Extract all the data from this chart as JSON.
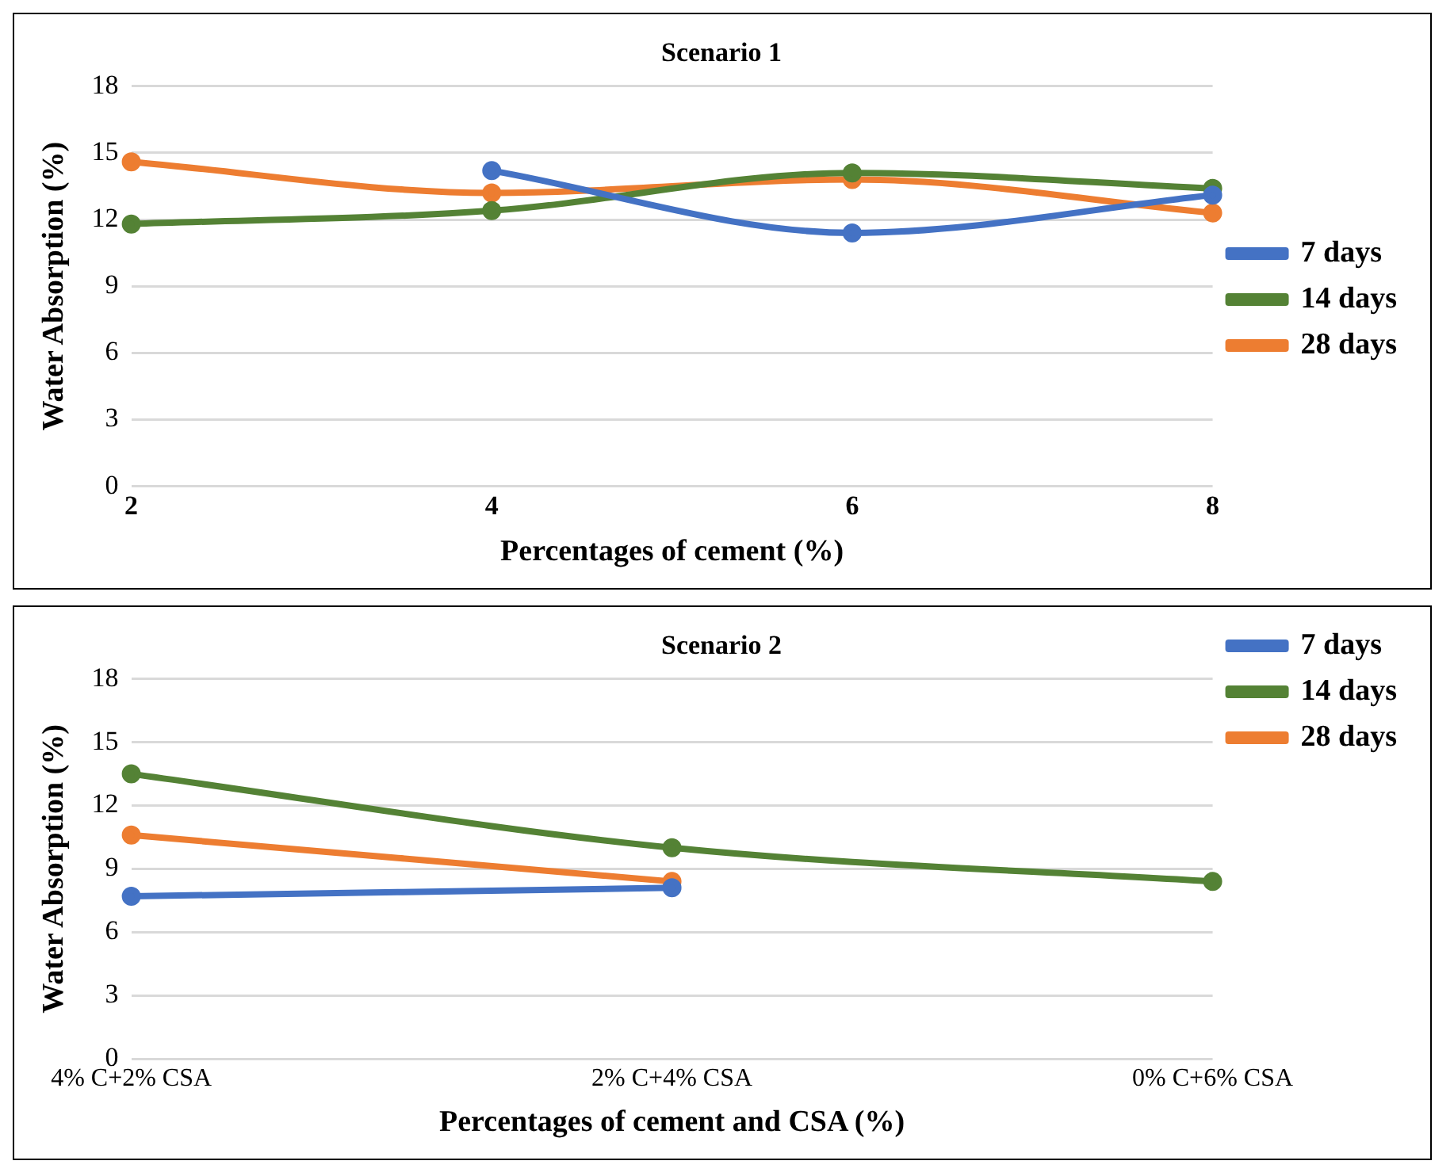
{
  "chart_data": [
    {
      "type": "line",
      "title": "Scenario 1",
      "xlabel": "Percentages of cement (%)",
      "ylabel": "Water Absorption (%)",
      "categories": [
        "2",
        "4",
        "6",
        "8"
      ],
      "series": [
        {
          "name": "7 days",
          "color": "#4472c4",
          "values": [
            null,
            14.2,
            11.4,
            13.1
          ]
        },
        {
          "name": "14 days",
          "color": "#548235",
          "values": [
            11.8,
            12.4,
            14.1,
            13.4
          ]
        },
        {
          "name": "28 days",
          "color": "#ed7d31",
          "values": [
            14.6,
            13.2,
            13.8,
            12.3
          ]
        }
      ],
      "ylim": [
        0,
        18
      ],
      "yticks": [
        0,
        3,
        6,
        9,
        12,
        15,
        18
      ],
      "grid": "y",
      "legend": "right",
      "marker": "circle"
    },
    {
      "type": "line",
      "title": "Scenario 2",
      "xlabel": "Percentages of cement and CSA (%)",
      "ylabel": "Water Absorption (%)",
      "categories": [
        "4% C+2% CSA",
        "2% C+4% CSA",
        "0% C+6% CSA"
      ],
      "series": [
        {
          "name": "7 days",
          "color": "#4472c4",
          "values": [
            7.7,
            8.1,
            null
          ]
        },
        {
          "name": "14 days",
          "color": "#548235",
          "values": [
            13.5,
            10.0,
            8.4
          ]
        },
        {
          "name": "28 days",
          "color": "#ed7d31",
          "values": [
            10.6,
            8.4,
            null
          ]
        }
      ],
      "ylim": [
        0,
        18
      ],
      "yticks": [
        0,
        3,
        6,
        9,
        12,
        15,
        18
      ],
      "grid": "y",
      "legend": "top right",
      "marker": "circle"
    }
  ]
}
